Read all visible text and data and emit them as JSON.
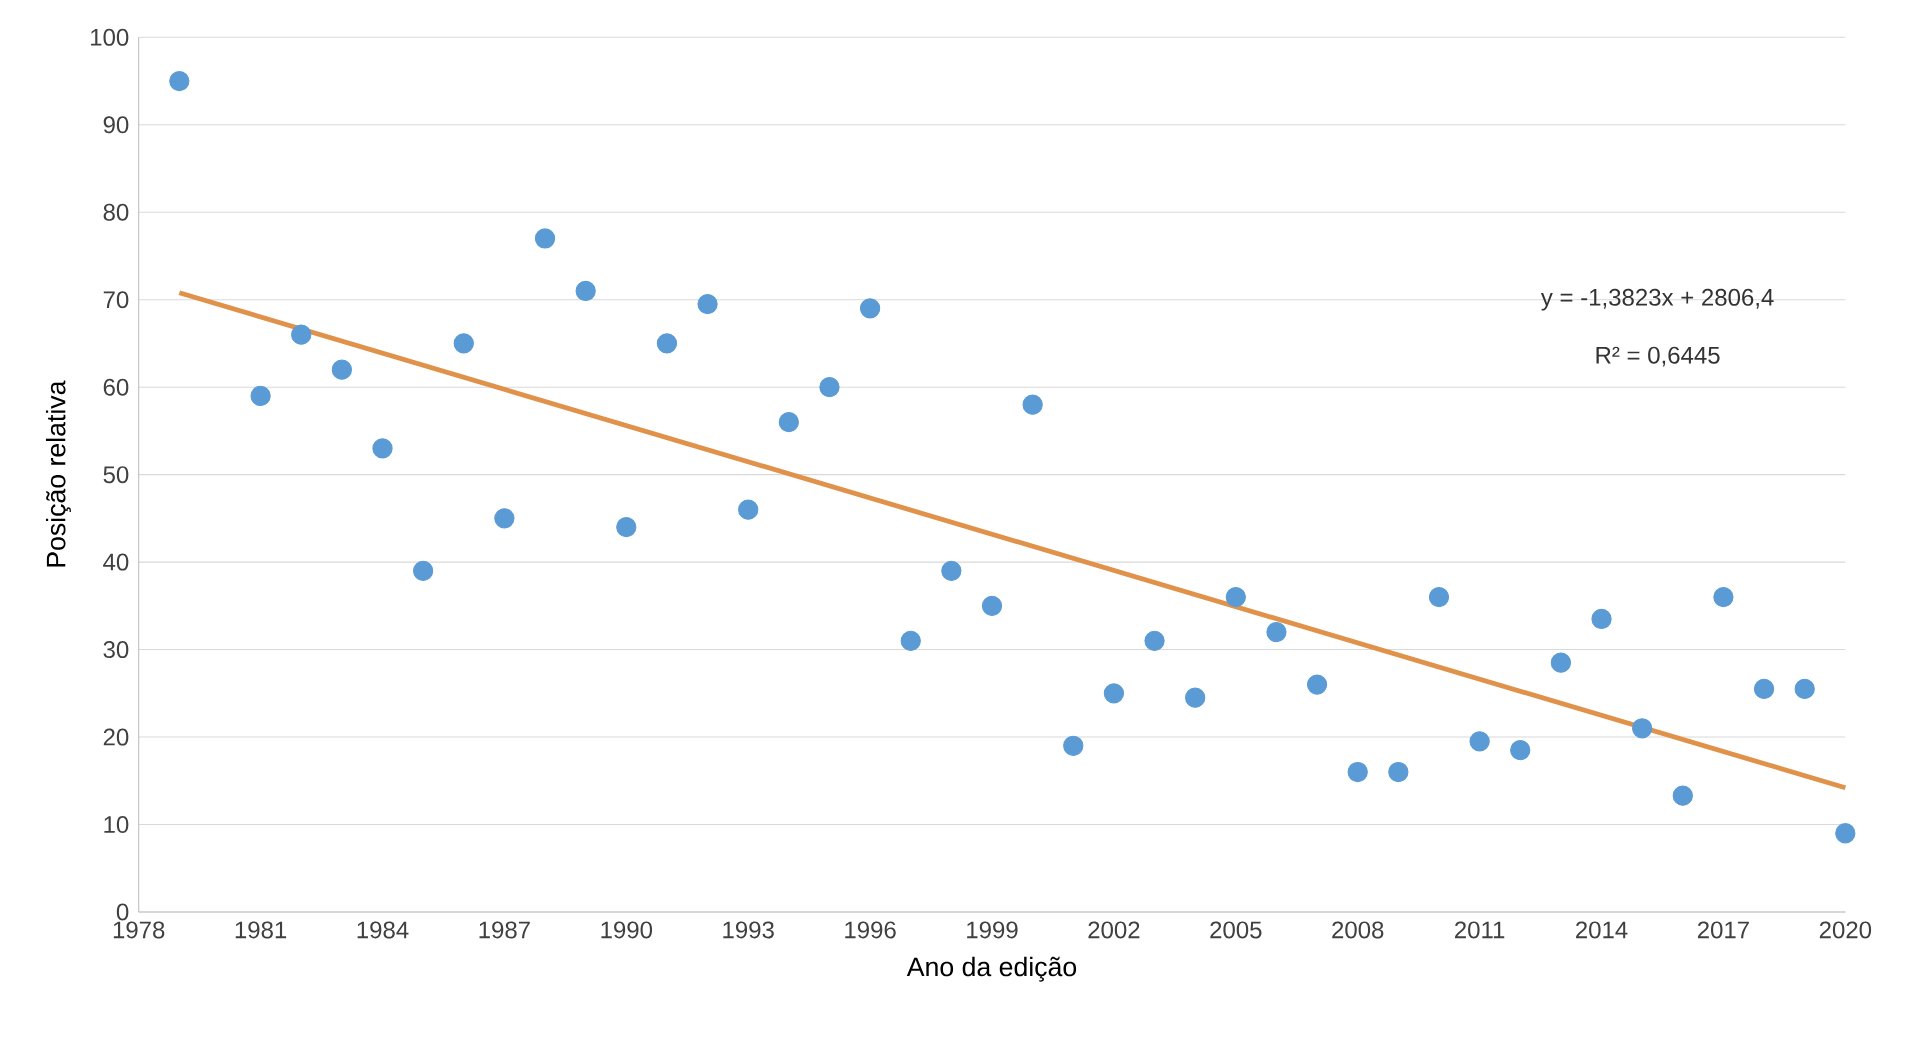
{
  "chart_data": {
    "type": "scatter",
    "xlabel": "Ano da edição",
    "ylabel": "Posição relativa",
    "xlim": [
      1978,
      2020
    ],
    "xticks": [
      1978,
      1981,
      1984,
      1987,
      1990,
      1993,
      1996,
      1999,
      2002,
      2005,
      2008,
      2011,
      2014,
      2017,
      2020
    ],
    "ylim": [
      0,
      100
    ],
    "yticks": [
      0,
      10,
      20,
      30,
      40,
      50,
      60,
      70,
      80,
      90,
      100
    ],
    "grid": "y",
    "marker": "circle",
    "annotations": [
      "y = -1,3823x + 2806,4",
      "R² = 0,6445"
    ],
    "series": [
      {
        "color": "#5b9bd5",
        "x": [
          1979,
          1981,
          1982,
          1983,
          1984,
          1985,
          1986,
          1987,
          1988,
          1989,
          1990,
          1991,
          1992,
          1993,
          1994,
          1995,
          1996,
          1997,
          1998,
          1999,
          2000,
          2001,
          2002,
          2003,
          2004,
          2005,
          2006,
          2007,
          2008,
          2009,
          2010,
          2011,
          2012,
          2013,
          2014,
          2015,
          2016,
          2017,
          2018,
          2019,
          2020
        ],
        "values": [
          95,
          59,
          66,
          62,
          53,
          39,
          65,
          45,
          77,
          71,
          44,
          65,
          69.5,
          46,
          56,
          60,
          69,
          31,
          39,
          35,
          58,
          19,
          25,
          31,
          24.5,
          36,
          32,
          26,
          16,
          16,
          36,
          19.5,
          18.5,
          28.5,
          33.5,
          21,
          13.3,
          36,
          25.5,
          25.5,
          9
        ]
      },
      {
        "type": "line",
        "marker": "none",
        "color": "#e0914a",
        "x": [
          1979,
          2020
        ],
        "values": [
          70.8,
          14.2
        ]
      }
    ]
  }
}
